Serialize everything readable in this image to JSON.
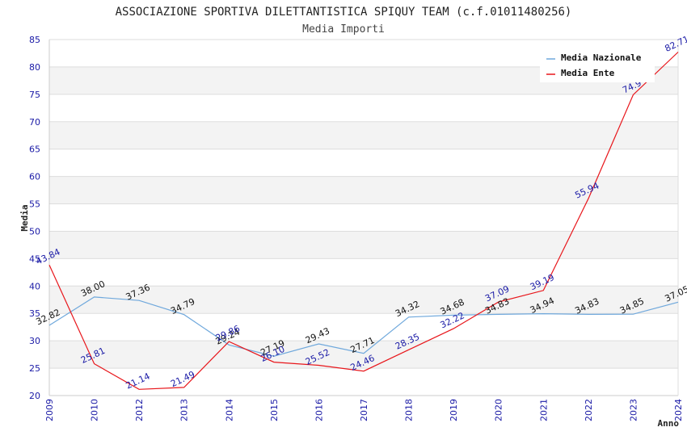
{
  "chart_data": {
    "type": "line",
    "title": "ASSOCIAZIONE SPORTIVA DILETTANTISTICA SPIQUY TEAM (c.f.01011480256)",
    "subtitle": "Media Importi",
    "xlabel": "Anno",
    "ylabel": "Media",
    "ylim": [
      20,
      85
    ],
    "y_ticks": [
      "20",
      "25",
      "30",
      "35",
      "40",
      "45",
      "50",
      "55",
      "60",
      "65",
      "70",
      "75",
      "80",
      "85"
    ],
    "categories": [
      "2009",
      "2010",
      "2012",
      "2013",
      "2014",
      "2015",
      "2016",
      "2017",
      "2018",
      "2019",
      "2020",
      "2021",
      "2022",
      "2023",
      "2024"
    ],
    "grid": true,
    "legend_position": "top-right",
    "series": [
      {
        "name": "Media Nazionale",
        "color": "#6fa8dc",
        "values": [
          32.82,
          38.0,
          37.36,
          34.79,
          29.24,
          27.19,
          29.43,
          27.71,
          34.32,
          34.68,
          34.83,
          34.94,
          34.83,
          34.85,
          37.05
        ],
        "labels": [
          "32.82",
          "38.00",
          "37.36",
          "34.79",
          "29.24",
          "27.19",
          "29.43",
          "27.71",
          "34.32",
          "34.68",
          "34.83",
          "34.94",
          "34.83",
          "34.85",
          "37.05"
        ]
      },
      {
        "name": "Media Ente",
        "color": "#e8161b",
        "values": [
          43.84,
          25.81,
          21.14,
          21.49,
          29.86,
          26.1,
          25.52,
          24.46,
          28.35,
          32.22,
          37.09,
          39.19,
          55.94,
          74.9,
          82.71
        ],
        "labels": [
          "43.84",
          "25.81",
          "21.14",
          "21.49",
          "29.86",
          "26.10",
          "25.52",
          "24.46",
          "28.35",
          "32.22",
          "37.09",
          "39.19",
          "55.94",
          "74.9",
          "82.71"
        ]
      }
    ]
  }
}
